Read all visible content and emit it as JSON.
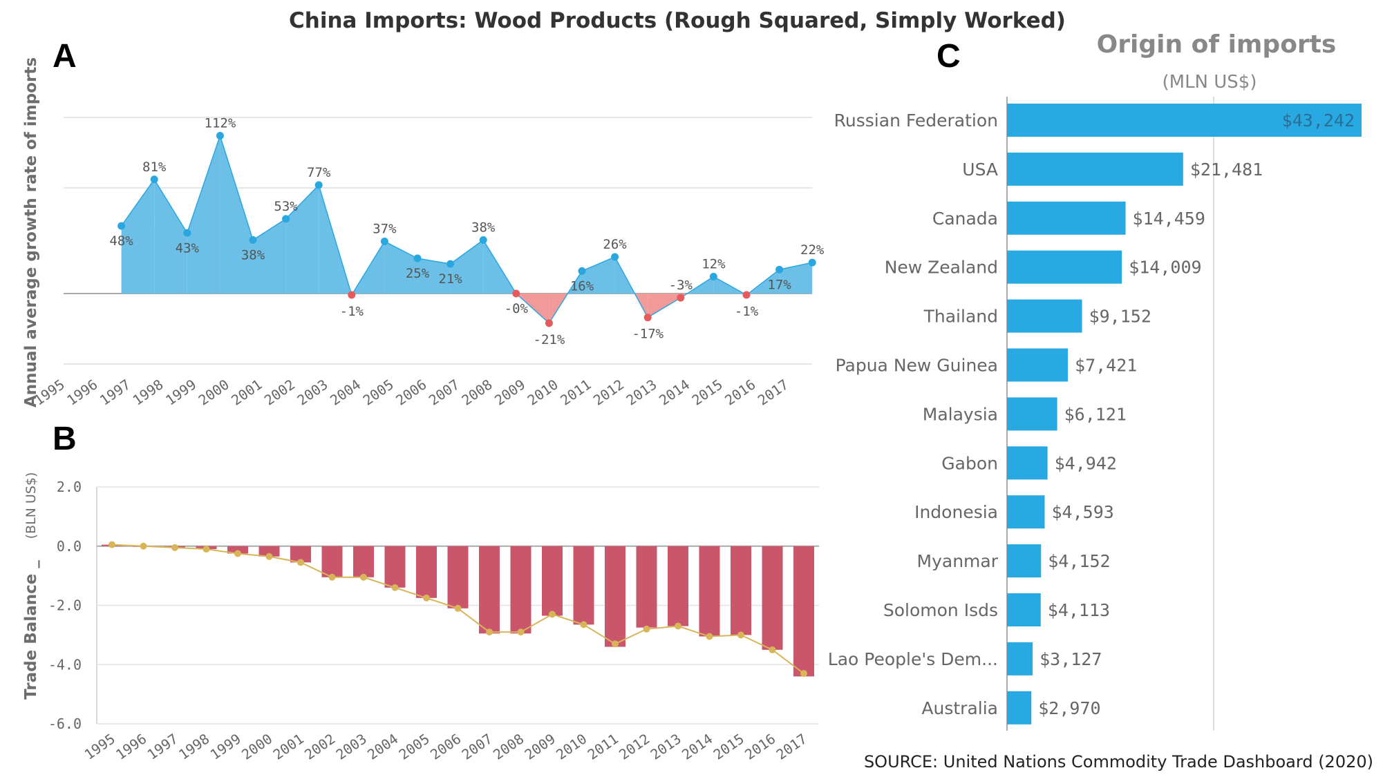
{
  "title": "China Imports: Wood Products (Rough Squared, Simply Worked)",
  "panel_letters": {
    "a": "A",
    "b": "B",
    "c": "C"
  },
  "source": "SOURCE: United Nations Commodity Trade Dashboard (2020)",
  "colors": {
    "positive": "#2aa7e0",
    "positive_fill": "#6cc0e8",
    "negative": "#e55a5a",
    "negative_fill": "#f29a9a",
    "bar_red": "#c9566b",
    "trend": "#d9b55a",
    "bar_blue": "#28a9e1"
  },
  "chart_data": [
    {
      "id": "A",
      "type": "area",
      "ylabel": "Annual average growth rate of imports",
      "x": [
        "1995",
        "1996",
        "1997",
        "1998",
        "1999",
        "2000",
        "2001",
        "2002",
        "2003",
        "2004",
        "2005",
        "2006",
        "2007",
        "2008",
        "2009",
        "2010",
        "2011",
        "2012",
        "2013",
        "2014",
        "2015",
        "2016",
        "2017"
      ],
      "values": [
        null,
        48,
        81,
        43,
        112,
        38,
        53,
        77,
        -1,
        37,
        25,
        21,
        38,
        0,
        -21,
        16,
        26,
        -17,
        -3,
        12,
        -1,
        17,
        22
      ],
      "labels": [
        "",
        "48%",
        "81%",
        "43%",
        "112%",
        "38%",
        "53%",
        "77%",
        "-1%",
        "37%",
        "25%",
        "21%",
        "38%",
        "-0%",
        "-21%",
        "16%",
        "26%",
        "-17%",
        "-3%",
        "12%",
        "-1%",
        "17%",
        "22%"
      ],
      "ylim": [
        -50,
        125
      ],
      "grid": true
    },
    {
      "id": "B",
      "type": "bar",
      "ylabel": "Trade Balance _",
      "yunit": "(BLN US$)",
      "categories": [
        "1995",
        "1996",
        "1997",
        "1998",
        "1999",
        "2000",
        "2001",
        "2002",
        "2003",
        "2004",
        "2005",
        "2006",
        "2007",
        "2008",
        "2009",
        "2010",
        "2011",
        "2012",
        "2013",
        "2014",
        "2015",
        "2016",
        "2017"
      ],
      "values": [
        0.05,
        0.0,
        -0.05,
        -0.1,
        -0.25,
        -0.35,
        -0.55,
        -1.05,
        -1.05,
        -1.4,
        -1.75,
        -2.1,
        -2.95,
        -2.95,
        -2.35,
        -2.65,
        -3.4,
        -2.75,
        -2.7,
        -3.05,
        -3.0,
        -3.5,
        -4.4
      ],
      "trend": [
        0.05,
        0.0,
        -0.05,
        -0.1,
        -0.25,
        -0.35,
        -0.55,
        -1.05,
        -1.05,
        -1.4,
        -1.75,
        -2.1,
        -2.9,
        -2.9,
        -2.3,
        -2.65,
        -3.3,
        -2.8,
        -2.7,
        -3.05,
        -3.0,
        -3.5,
        -4.3
      ],
      "yticks": [
        "2.0",
        "0.0",
        "-2.0",
        "-4.0",
        "-6.0"
      ],
      "ylim": [
        -6,
        2
      ],
      "grid": true
    },
    {
      "id": "C",
      "type": "bar",
      "orientation": "horizontal",
      "title": "Origin of imports",
      "subtitle": "(MLN US$)",
      "categories": [
        "Russian Federation",
        "USA",
        "Canada",
        "New Zealand",
        "Thailand",
        "Papua New Guinea",
        "Malaysia",
        "Gabon",
        "Indonesia",
        "Myanmar",
        "Solomon Isds",
        "Lao People's Dem...",
        "Australia"
      ],
      "values": [
        43242,
        21481,
        14459,
        14009,
        9152,
        7421,
        6121,
        4942,
        4593,
        4152,
        4113,
        3127,
        2970
      ],
      "labels": [
        "$43,242",
        "$21,481",
        "$14,459",
        "$14,009",
        "$9,152",
        "$7,421",
        "$6,121",
        "$4,942",
        "$4,593",
        "$4,152",
        "$4,113",
        "$3,127",
        "$2,970"
      ],
      "xlim": [
        0,
        43242
      ]
    }
  ]
}
